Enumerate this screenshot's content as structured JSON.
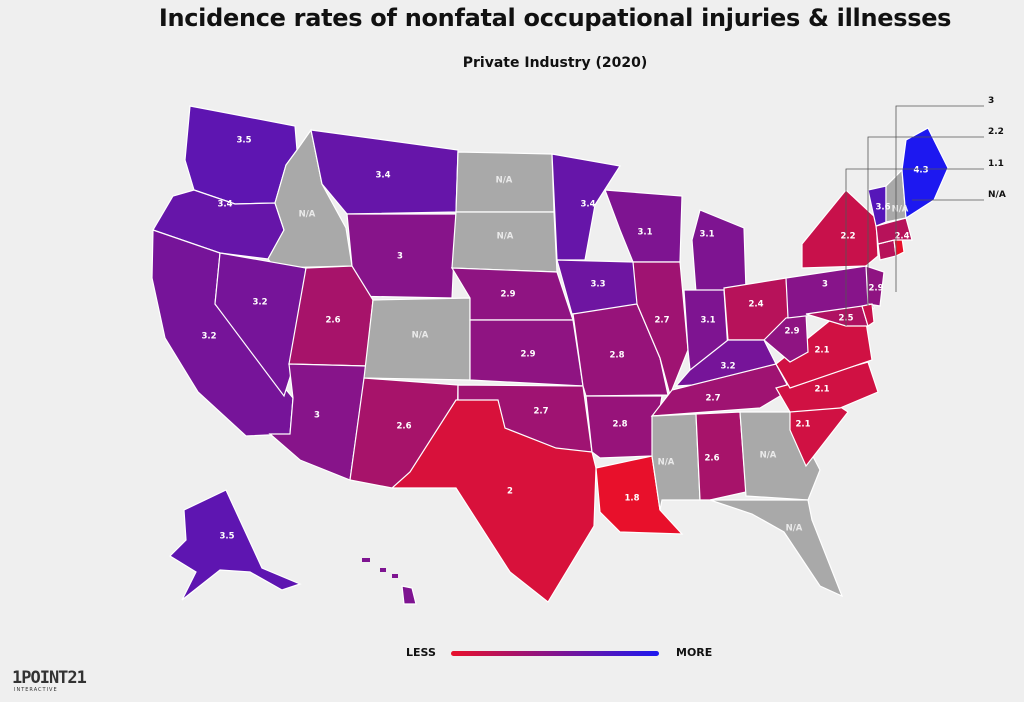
{
  "title": "Incidence rates of nonfatal occupational injuries & illnesses",
  "subtitle": "Private Industry (2020)",
  "legend": {
    "less": "LESS",
    "more": "MORE",
    "color_less": "#e8102b",
    "color_more": "#1d18f0"
  },
  "logo": {
    "main": "1POINT21",
    "sub": "INTERACTIVE"
  },
  "no_data_color": "#a9a9a9",
  "callouts": [
    "3",
    "2.2",
    "1.1",
    "N/A"
  ],
  "states": [
    {
      "name": "Washington",
      "value": 3.5,
      "label": "3.5"
    },
    {
      "name": "Oregon",
      "value": 3.4,
      "label": "3.4"
    },
    {
      "name": "California",
      "value": 3.2,
      "label": "3.2"
    },
    {
      "name": "Idaho",
      "value": null,
      "label": "N/A"
    },
    {
      "name": "Nevada",
      "value": 3.2,
      "label": "3.2"
    },
    {
      "name": "Montana",
      "value": 3.4,
      "label": "3.4"
    },
    {
      "name": "Wyoming",
      "value": 3,
      "label": "3"
    },
    {
      "name": "Utah",
      "value": 2.6,
      "label": "2.6"
    },
    {
      "name": "Arizona",
      "value": 3,
      "label": "3"
    },
    {
      "name": "Colorado",
      "value": null,
      "label": "N/A"
    },
    {
      "name": "New Mexico",
      "value": 2.6,
      "label": "2.6"
    },
    {
      "name": "North Dakota",
      "value": null,
      "label": "N/A"
    },
    {
      "name": "South Dakota",
      "value": null,
      "label": "N/A"
    },
    {
      "name": "Nebraska",
      "value": 2.9,
      "label": "2.9"
    },
    {
      "name": "Kansas",
      "value": 2.9,
      "label": "2.9"
    },
    {
      "name": "Oklahoma",
      "value": 2.7,
      "label": "2.7"
    },
    {
      "name": "Texas",
      "value": 2,
      "label": "2"
    },
    {
      "name": "Minnesota",
      "value": 3.4,
      "label": "3.4"
    },
    {
      "name": "Iowa",
      "value": 3.3,
      "label": "3.3"
    },
    {
      "name": "Missouri",
      "value": 2.8,
      "label": "2.8"
    },
    {
      "name": "Arkansas",
      "value": 2.8,
      "label": "2.8"
    },
    {
      "name": "Louisiana",
      "value": 1.8,
      "label": "1.8"
    },
    {
      "name": "Wisconsin",
      "value": 3.1,
      "label": "3.1"
    },
    {
      "name": "Illinois",
      "value": 2.7,
      "label": "2.7"
    },
    {
      "name": "Michigan",
      "value": 3.1,
      "label": "3.1"
    },
    {
      "name": "Indiana",
      "value": 3.1,
      "label": "3.1"
    },
    {
      "name": "Ohio",
      "value": 2.4,
      "label": "2.4"
    },
    {
      "name": "Kentucky",
      "value": 3.2,
      "label": "3.2"
    },
    {
      "name": "Tennessee",
      "value": 2.7,
      "label": "2.7"
    },
    {
      "name": "Mississippi",
      "value": null,
      "label": "N/A"
    },
    {
      "name": "Alabama",
      "value": 2.6,
      "label": "2.6"
    },
    {
      "name": "Georgia",
      "value": null,
      "label": "N/A"
    },
    {
      "name": "Florida",
      "value": null,
      "label": "N/A"
    },
    {
      "name": "South Carolina",
      "value": 2.1,
      "label": "2.1"
    },
    {
      "name": "North Carolina",
      "value": 2.1,
      "label": "2.1"
    },
    {
      "name": "Virginia",
      "value": 2.1,
      "label": "2.1"
    },
    {
      "name": "West Virginia",
      "value": 2.9,
      "label": "2.9"
    },
    {
      "name": "Pennsylvania",
      "value": 3,
      "label": "3"
    },
    {
      "name": "New York",
      "value": 2.2,
      "label": "2.2"
    },
    {
      "name": "New Jersey",
      "value": 2.9,
      "label": "2.9"
    },
    {
      "name": "Maryland",
      "value": 2.5,
      "label": "2.5"
    },
    {
      "name": "Delaware",
      "value": 2.2,
      "label": ""
    },
    {
      "name": "Connecticut",
      "value": 2.4,
      "label": ""
    },
    {
      "name": "Rhode Island",
      "value": 1.1,
      "label": ""
    },
    {
      "name": "Massachusetts",
      "value": 2.4,
      "label": "2.4"
    },
    {
      "name": "Vermont",
      "value": 3.6,
      "label": "3.6"
    },
    {
      "name": "New Hampshire",
      "value": null,
      "label": "N/A"
    },
    {
      "name": "Maine",
      "value": 4.3,
      "label": "4.3"
    },
    {
      "name": "Alaska",
      "value": 3.5,
      "label": "3.5"
    },
    {
      "name": "Hawaii",
      "value": 3.1,
      "label": ""
    }
  ]
}
